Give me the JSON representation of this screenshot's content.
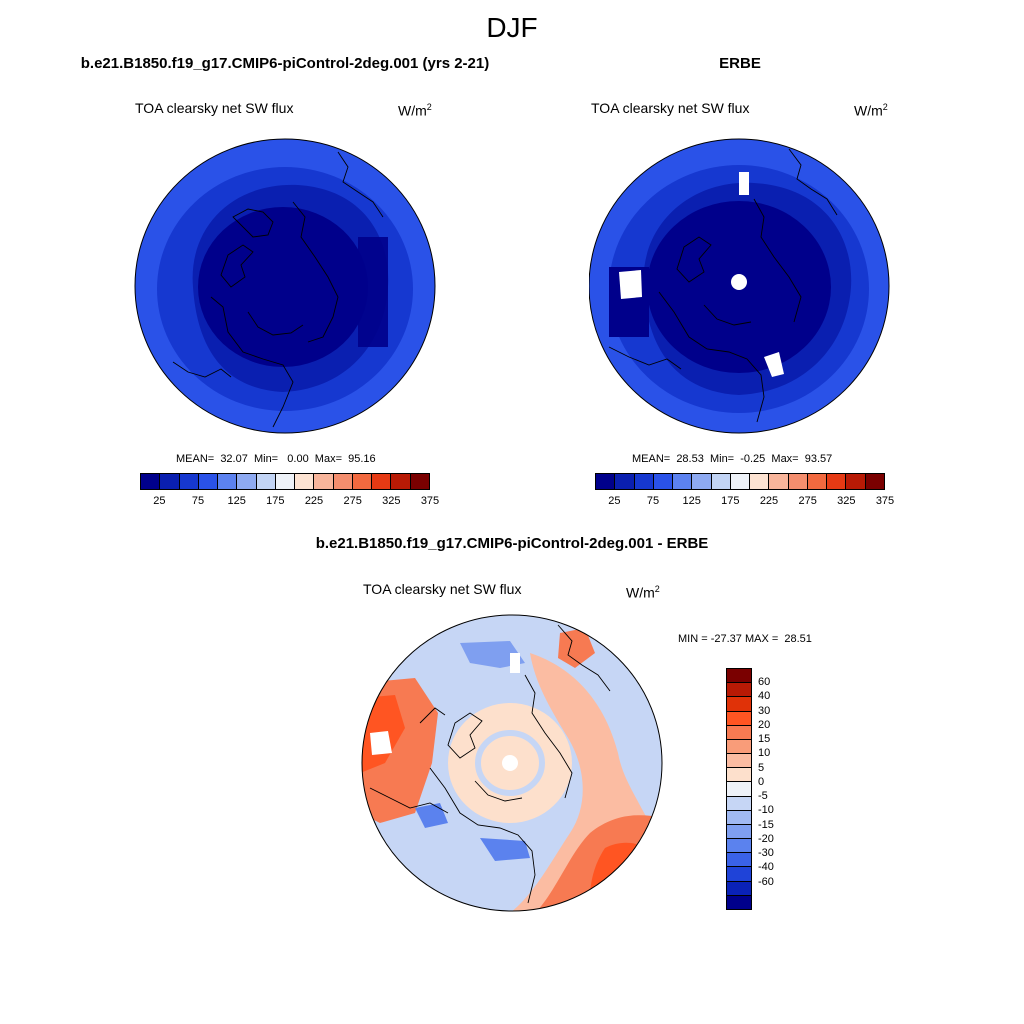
{
  "title": "DJF",
  "panels": [
    {
      "title": "b.e21.B1850.f19_g17.CMIP6-piControl-2deg.001 (yrs 2-21)",
      "variable": "TOA clearsky net SW flux",
      "units_base": "W/m",
      "units_exp": "2",
      "stats": "MEAN=  32.07  Min=   0.00  Max=  95.16"
    },
    {
      "title": "ERBE",
      "variable": "TOA clearsky net SW flux",
      "units_base": "W/m",
      "units_exp": "2",
      "stats": "MEAN=  28.53  Min=  -0.25  Max=  93.57"
    },
    {
      "title": "b.e21.B1850.f19_g17.CMIP6-piControl-2deg.001 - ERBE",
      "variable": "TOA clearsky net SW flux",
      "units_base": "W/m",
      "units_exp": "2",
      "stats": "MIN = -27.37 MAX =  28.51"
    }
  ],
  "colorbar_fields": {
    "colors": [
      "#00008b",
      "#0a1fb0",
      "#1638d0",
      "#2a52e8",
      "#5c82f0",
      "#8eaaf2",
      "#c2d4f5",
      "#eef2f8",
      "#fde3d2",
      "#f8b59b",
      "#f48e6e",
      "#f2693f",
      "#e63a14",
      "#b81a05",
      "#7a0000"
    ],
    "labels": [
      "25",
      "75",
      "125",
      "175",
      "225",
      "275",
      "325",
      "375"
    ]
  },
  "colorbar_diff": {
    "colors": [
      "#7a0000",
      "#b81a05",
      "#e03208",
      "#ff5522",
      "#f77a52",
      "#f99c79",
      "#fbbca2",
      "#fde0cc",
      "#eef2f8",
      "#c6d6f5",
      "#a0b9f2",
      "#7f9ff0",
      "#5b82ee",
      "#3a62e8",
      "#1f43d8",
      "#0a22b8",
      "#00008b"
    ],
    "labels": [
      "60",
      "40",
      "30",
      "20",
      "15",
      "10",
      "5",
      "0",
      "-5",
      "-10",
      "-15",
      "-20",
      "-30",
      "-40",
      "-60"
    ]
  },
  "chart_data": [
    {
      "type": "heatmap",
      "title": "b.e21.B1850.f19_g17.CMIP6-piControl-2deg.001 (yrs 2-21)",
      "subtitle": "TOA clearsky net SW flux",
      "units": "W/m2",
      "projection": "north polar stereographic",
      "mean": 32.07,
      "min": 0.0,
      "max": 95.16,
      "colorbar_levels": [
        25,
        75,
        125,
        175,
        225,
        275,
        325,
        375
      ]
    },
    {
      "type": "heatmap",
      "title": "ERBE",
      "subtitle": "TOA clearsky net SW flux",
      "units": "W/m2",
      "projection": "north polar stereographic",
      "mean": 28.53,
      "min": -0.25,
      "max": 93.57,
      "colorbar_levels": [
        25,
        75,
        125,
        175,
        225,
        275,
        325,
        375
      ]
    },
    {
      "type": "heatmap",
      "title": "b.e21.B1850.f19_g17.CMIP6-piControl-2deg.001 - ERBE",
      "subtitle": "TOA clearsky net SW flux",
      "units": "W/m2",
      "projection": "north polar stereographic",
      "min": -27.37,
      "max": 28.51,
      "colorbar_levels": [
        60,
        40,
        30,
        20,
        15,
        10,
        5,
        0,
        -5,
        -10,
        -15,
        -20,
        -30,
        -40,
        -60
      ]
    }
  ]
}
